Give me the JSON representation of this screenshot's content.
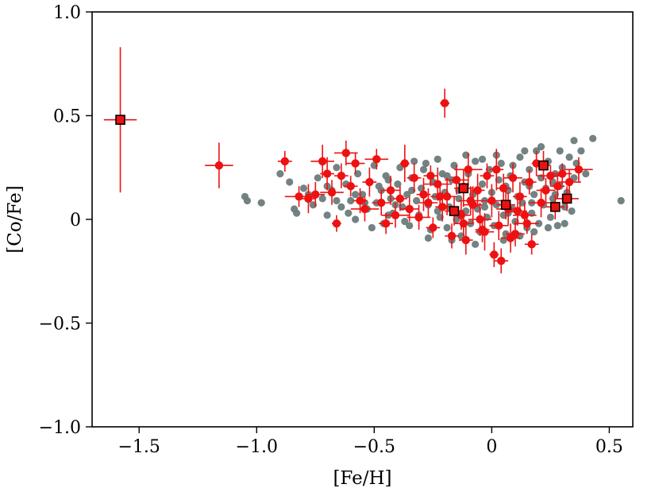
{
  "chart_data": {
    "type": "scatter",
    "xlabel": "[Fe/H]",
    "ylabel": "[Co/Fe]",
    "xlim": [
      -1.7,
      0.6
    ],
    "ylim": [
      -1.0,
      1.0
    ],
    "x_ticks": [
      -1.5,
      -1.0,
      -0.5,
      0,
      0.5
    ],
    "x_tick_labels": [
      "−1.5",
      "−1.0",
      "−0.5",
      "0",
      "0.5"
    ],
    "y_ticks": [
      -1.0,
      -0.5,
      0,
      0.5,
      1.0
    ],
    "y_tick_labels": [
      "−1.0",
      "−0.5",
      "0",
      "0.5",
      "1.0"
    ],
    "grid": false,
    "colors": {
      "comparison": "#6b7b7b",
      "stars": "#ee1111",
      "stars_edge": "#cc0000",
      "square_edge": "#000000"
    },
    "series": [
      {
        "marker": "circle",
        "color": "#6b7b7b",
        "points": [
          [
            -1.05,
            0.11
          ],
          [
            -1.04,
            0.09
          ],
          [
            -0.98,
            0.08
          ],
          [
            -0.9,
            0.22
          ],
          [
            -0.86,
            0.18
          ],
          [
            -0.84,
            0.05
          ],
          [
            -0.83,
            0.03
          ],
          [
            -0.8,
            0.15
          ],
          [
            -0.78,
            0.12
          ],
          [
            -0.76,
            0.07
          ],
          [
            -0.74,
            0.2
          ],
          [
            -0.72,
            0.1
          ],
          [
            -0.7,
            0.02
          ],
          [
            -0.68,
            0.14
          ],
          [
            -0.66,
            0.25
          ],
          [
            -0.64,
            0.06
          ],
          [
            -0.62,
            0.17
          ],
          [
            -0.6,
            0.09
          ],
          [
            -0.58,
            0.0
          ],
          [
            -0.57,
            0.22
          ],
          [
            -0.55,
            0.12
          ],
          [
            -0.53,
            0.05
          ],
          [
            -0.52,
            0.18
          ],
          [
            -0.5,
            0.26
          ],
          [
            -0.49,
            0.08
          ],
          [
            -0.47,
            0.14
          ],
          [
            -0.46,
            -0.02
          ],
          [
            -0.45,
            0.21
          ],
          [
            -0.43,
            0.1
          ],
          [
            -0.42,
            0.03
          ],
          [
            -0.4,
            0.17
          ],
          [
            -0.39,
            0.25
          ],
          [
            -0.38,
            0.06
          ],
          [
            -0.36,
            0.12
          ],
          [
            -0.35,
            -0.03
          ],
          [
            -0.34,
            0.2
          ],
          [
            -0.32,
            0.09
          ],
          [
            -0.31,
            0.02
          ],
          [
            -0.3,
            0.15
          ],
          [
            -0.28,
            0.27
          ],
          [
            -0.27,
            0.07
          ],
          [
            -0.26,
            -0.05
          ],
          [
            -0.25,
            0.18
          ],
          [
            -0.24,
            0.11
          ],
          [
            -0.22,
            0.01
          ],
          [
            -0.21,
            0.22
          ],
          [
            -0.2,
            0.13
          ],
          [
            -0.19,
            -0.04
          ],
          [
            -0.18,
            0.06
          ],
          [
            -0.17,
            0.19
          ],
          [
            -0.16,
            0.26
          ],
          [
            -0.15,
            0.0
          ],
          [
            -0.14,
            0.1
          ],
          [
            -0.13,
            -0.08
          ],
          [
            -0.12,
            0.16
          ],
          [
            -0.11,
            0.04
          ],
          [
            -0.1,
            0.22
          ],
          [
            -0.09,
            -0.02
          ],
          [
            -0.08,
            0.12
          ],
          [
            -0.07,
            0.28
          ],
          [
            -0.06,
            0.05
          ],
          [
            -0.05,
            -0.06
          ],
          [
            -0.04,
            0.17
          ],
          [
            -0.03,
            0.09
          ],
          [
            -0.02,
            0.01
          ],
          [
            -0.01,
            0.24
          ],
          [
            0.0,
            0.13
          ],
          [
            0.01,
            -0.03
          ],
          [
            0.02,
            0.07
          ],
          [
            0.03,
            0.19
          ],
          [
            0.04,
            0.27
          ],
          [
            0.05,
            0.02
          ],
          [
            0.06,
            -0.07
          ],
          [
            0.07,
            0.14
          ],
          [
            0.08,
            0.21
          ],
          [
            0.09,
            0.05
          ],
          [
            0.1,
            -0.01
          ],
          [
            0.11,
            0.11
          ],
          [
            0.12,
            0.3
          ],
          [
            0.13,
            0.08
          ],
          [
            0.14,
            0.18
          ],
          [
            0.15,
            -0.04
          ],
          [
            0.16,
            0.24
          ],
          [
            0.17,
            0.03
          ],
          [
            0.18,
            0.12
          ],
          [
            0.19,
            0.33
          ],
          [
            0.2,
            -0.02
          ],
          [
            0.21,
            0.2
          ],
          [
            0.22,
            0.07
          ],
          [
            0.23,
            0.15
          ],
          [
            0.24,
            0.28
          ],
          [
            0.25,
            0.01
          ],
          [
            0.26,
            0.1
          ],
          [
            0.27,
            0.22
          ],
          [
            0.28,
            -0.03
          ],
          [
            0.29,
            0.16
          ],
          [
            0.3,
            0.25
          ],
          [
            0.31,
            0.06
          ],
          [
            0.32,
            0.13
          ],
          [
            0.33,
            0.3
          ],
          [
            0.34,
            0.04
          ],
          [
            0.35,
            0.2
          ],
          [
            0.36,
            0.27
          ],
          [
            0.38,
            0.33
          ],
          [
            0.4,
            0.22
          ],
          [
            0.43,
            0.39
          ],
          [
            0.55,
            0.09
          ],
          [
            -0.33,
            0.28
          ],
          [
            -0.29,
            0.24
          ],
          [
            -0.23,
            0.29
          ],
          [
            -0.19,
            0.21
          ],
          [
            -0.11,
            0.31
          ],
          [
            -0.04,
            0.29
          ],
          [
            0.02,
            0.31
          ],
          [
            0.09,
            0.26
          ],
          [
            0.14,
            0.33
          ],
          [
            0.21,
            0.35
          ],
          [
            0.29,
            0.33
          ],
          [
            0.35,
            0.38
          ],
          [
            -0.44,
            0.19
          ],
          [
            -0.37,
            -0.01
          ],
          [
            -0.27,
            -0.09
          ],
          [
            -0.17,
            -0.1
          ],
          [
            -0.07,
            -0.12
          ],
          [
            0.05,
            -0.1
          ],
          [
            0.12,
            -0.08
          ],
          [
            0.18,
            -0.06
          ],
          [
            0.24,
            -0.04
          ],
          [
            0.31,
            -0.02
          ],
          [
            -0.61,
            0.03
          ],
          [
            -0.51,
            -0.04
          ],
          [
            -0.41,
            0.07
          ],
          [
            -0.23,
            0.04
          ],
          [
            -0.13,
            0.03
          ],
          [
            -0.03,
            0.06
          ],
          [
            0.07,
            0.03
          ],
          [
            0.17,
            0.08
          ],
          [
            0.27,
            0.12
          ],
          [
            -0.58,
            0.12
          ],
          [
            -0.48,
            0.16
          ],
          [
            -0.34,
            0.14
          ],
          [
            -0.14,
            0.14
          ],
          [
            0.06,
            0.16
          ],
          [
            0.16,
            0.16
          ],
          [
            0.26,
            0.18
          ],
          [
            -0.7,
            0.16
          ],
          [
            -0.66,
            0.09
          ],
          [
            -0.54,
            0.08
          ],
          [
            -0.44,
            0.02
          ]
        ]
      },
      {
        "marker": "circle-errorbar",
        "color": "#ee1111",
        "points": [
          [
            -1.16,
            0.26,
            0.06,
            0.11
          ],
          [
            -0.88,
            0.28,
            0.03,
            0.05
          ],
          [
            -0.82,
            0.11,
            0.06,
            0.05
          ],
          [
            -0.78,
            0.1,
            0.03,
            0.07
          ],
          [
            -0.75,
            0.12,
            0.04,
            0.06
          ],
          [
            -0.72,
            0.28,
            0.05,
            0.08
          ],
          [
            -0.7,
            0.22,
            0.03,
            0.08
          ],
          [
            -0.68,
            0.13,
            0.05,
            0.06
          ],
          [
            -0.66,
            -0.02,
            0.02,
            0.04
          ],
          [
            -0.64,
            0.21,
            0.03,
            0.06
          ],
          [
            -0.62,
            0.32,
            0.05,
            0.06
          ],
          [
            -0.6,
            0.16,
            0.03,
            0.05
          ],
          [
            -0.58,
            0.27,
            0.04,
            0.05
          ],
          [
            -0.56,
            0.09,
            0.03,
            0.06
          ],
          [
            -0.54,
            0.05,
            0.06,
            0.06
          ],
          [
            -0.52,
            0.18,
            0.03,
            0.07
          ],
          [
            -0.49,
            0.29,
            0.05,
            0.05
          ],
          [
            -0.47,
            0.08,
            0.04,
            0.06
          ],
          [
            -0.45,
            -0.02,
            0.03,
            0.05
          ],
          [
            -0.43,
            0.14,
            0.04,
            0.07
          ],
          [
            -0.41,
            0.02,
            0.06,
            0.06
          ],
          [
            -0.39,
            0.1,
            0.03,
            0.06
          ],
          [
            -0.37,
            0.27,
            0.02,
            0.09
          ],
          [
            -0.35,
            0.05,
            0.04,
            0.06
          ],
          [
            -0.33,
            0.2,
            0.03,
            0.07
          ],
          [
            -0.31,
            0.01,
            0.05,
            0.06
          ],
          [
            -0.29,
            0.12,
            0.03,
            0.08
          ],
          [
            -0.27,
            0.08,
            0.04,
            0.07
          ],
          [
            -0.25,
            -0.04,
            0.03,
            0.05
          ],
          [
            -0.23,
            0.17,
            0.06,
            0.08
          ],
          [
            -0.21,
            0.06,
            0.03,
            0.07
          ],
          [
            -0.2,
            0.56,
            0.02,
            0.07
          ],
          [
            -0.19,
            0.11,
            0.04,
            0.09
          ],
          [
            -0.17,
            -0.08,
            0.03,
            0.06
          ],
          [
            -0.15,
            0.19,
            0.05,
            0.07
          ],
          [
            -0.13,
            0.02,
            0.04,
            0.07
          ],
          [
            -0.11,
            -0.1,
            0.03,
            0.07
          ],
          [
            -0.1,
            0.24,
            0.06,
            0.08
          ],
          [
            -0.08,
            0.07,
            0.04,
            0.09
          ],
          [
            -0.06,
            0.14,
            0.03,
            0.08
          ],
          [
            -0.05,
            0.0,
            0.05,
            0.08
          ],
          [
            -0.03,
            -0.06,
            0.04,
            0.09
          ],
          [
            -0.02,
            0.21,
            0.03,
            0.06
          ],
          [
            0.0,
            0.09,
            0.05,
            0.08
          ],
          [
            0.01,
            -0.17,
            0.02,
            0.06
          ],
          [
            0.03,
            -0.03,
            0.04,
            0.07
          ],
          [
            0.04,
            -0.2,
            0.03,
            0.06
          ],
          [
            0.05,
            0.15,
            0.03,
            0.07
          ],
          [
            0.07,
            0.05,
            0.05,
            0.08
          ],
          [
            0.09,
            0.2,
            0.04,
            0.07
          ],
          [
            0.1,
            -0.07,
            0.04,
            0.06
          ],
          [
            0.12,
            0.11,
            0.03,
            0.07
          ],
          [
            0.14,
            0.02,
            0.05,
            0.06
          ],
          [
            0.16,
            0.18,
            0.03,
            0.06
          ],
          [
            0.17,
            -0.12,
            0.03,
            0.05
          ],
          [
            0.19,
            0.27,
            0.02,
            0.06
          ],
          [
            0.21,
            0.08,
            0.05,
            0.07
          ],
          [
            0.23,
            0.14,
            0.04,
            0.06
          ],
          [
            0.25,
            0.21,
            0.06,
            0.05
          ],
          [
            0.28,
            0.16,
            0.03,
            0.06
          ],
          [
            0.3,
            0.22,
            0.04,
            0.05
          ],
          [
            0.33,
            0.18,
            0.05,
            0.06
          ],
          [
            0.37,
            0.24,
            0.06,
            0.06
          ],
          [
            0.02,
            0.24,
            0.03,
            0.1
          ],
          [
            -0.09,
            0.09,
            0.05,
            0.07
          ],
          [
            -0.04,
            -0.05,
            0.03,
            0.06
          ],
          [
            0.08,
            -0.09,
            0.04,
            0.07
          ],
          [
            0.15,
            -0.02,
            0.05,
            0.05
          ],
          [
            -0.22,
            0.11,
            0.04,
            0.06
          ],
          [
            -0.26,
            0.21,
            0.03,
            0.05
          ],
          [
            -0.12,
            -0.02,
            0.04,
            0.06
          ],
          [
            0.11,
            0.04,
            0.04,
            0.07
          ]
        ]
      },
      {
        "marker": "square-errorbar",
        "color": "#ee1111",
        "points": [
          [
            -1.58,
            0.48,
            0.07,
            0.35
          ],
          [
            -0.16,
            0.04,
            0.04,
            0.07
          ],
          [
            -0.12,
            0.15,
            0.04,
            0.09
          ],
          [
            0.06,
            0.07,
            0.04,
            0.07
          ],
          [
            0.22,
            0.26,
            0.03,
            0.07
          ],
          [
            0.27,
            0.06,
            0.04,
            0.06
          ],
          [
            0.32,
            0.1,
            0.05,
            0.06
          ]
        ]
      }
    ]
  }
}
